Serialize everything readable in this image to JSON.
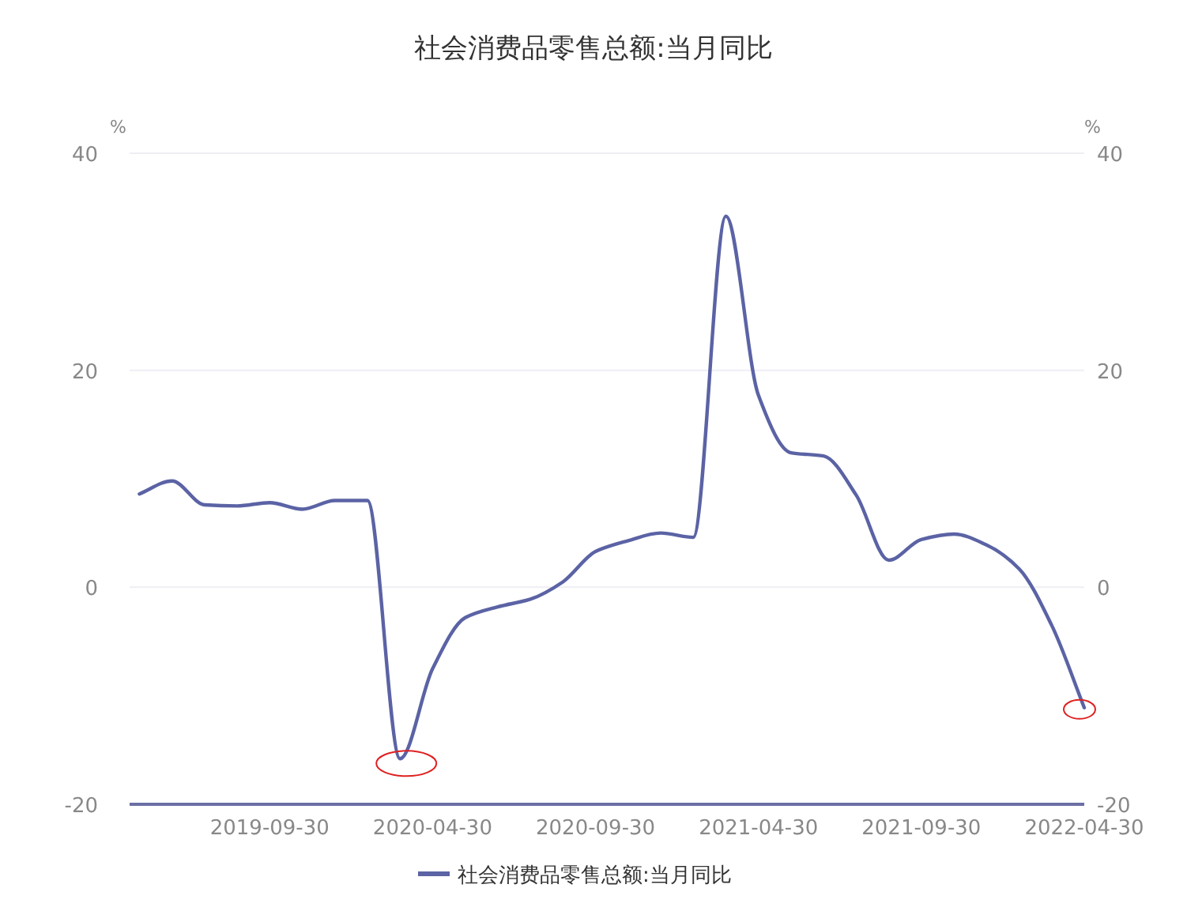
{
  "chart_data": {
    "type": "line",
    "title": "社会消费品零售总额:当月同比",
    "ylabel": "%",
    "y2label": "%",
    "categories": [
      null,
      null,
      null,
      null,
      "2019-09-30",
      null,
      null,
      null,
      null,
      "2020-04-30",
      null,
      null,
      null,
      null,
      "2020-09-30",
      null,
      null,
      null,
      null,
      "2021-04-30",
      null,
      null,
      null,
      null,
      "2021-09-30",
      null,
      null,
      null,
      null,
      "2022-04-30"
    ],
    "series": [
      {
        "name": "社会消费品零售总额:当月同比",
        "color": "#5b63a5",
        "values": [
          8.6,
          9.8,
          7.6,
          7.5,
          7.8,
          7.2,
          8.0,
          8.0,
          -15.8,
          -7.5,
          -2.8,
          -1.8,
          -1.1,
          0.5,
          3.3,
          4.3,
          5.0,
          4.6,
          34.2,
          17.7,
          12.4,
          12.1,
          8.5,
          2.5,
          4.4,
          4.9,
          3.9,
          1.7,
          -3.5,
          -11.1
        ]
      }
    ],
    "ylim": [
      -20,
      40
    ],
    "yticks": [
      -20,
      0,
      20,
      40
    ],
    "y2lim": [
      -20,
      40
    ],
    "y2ticks": [
      -20,
      0,
      20,
      40
    ],
    "grid": "y",
    "legend": "bottom"
  }
}
